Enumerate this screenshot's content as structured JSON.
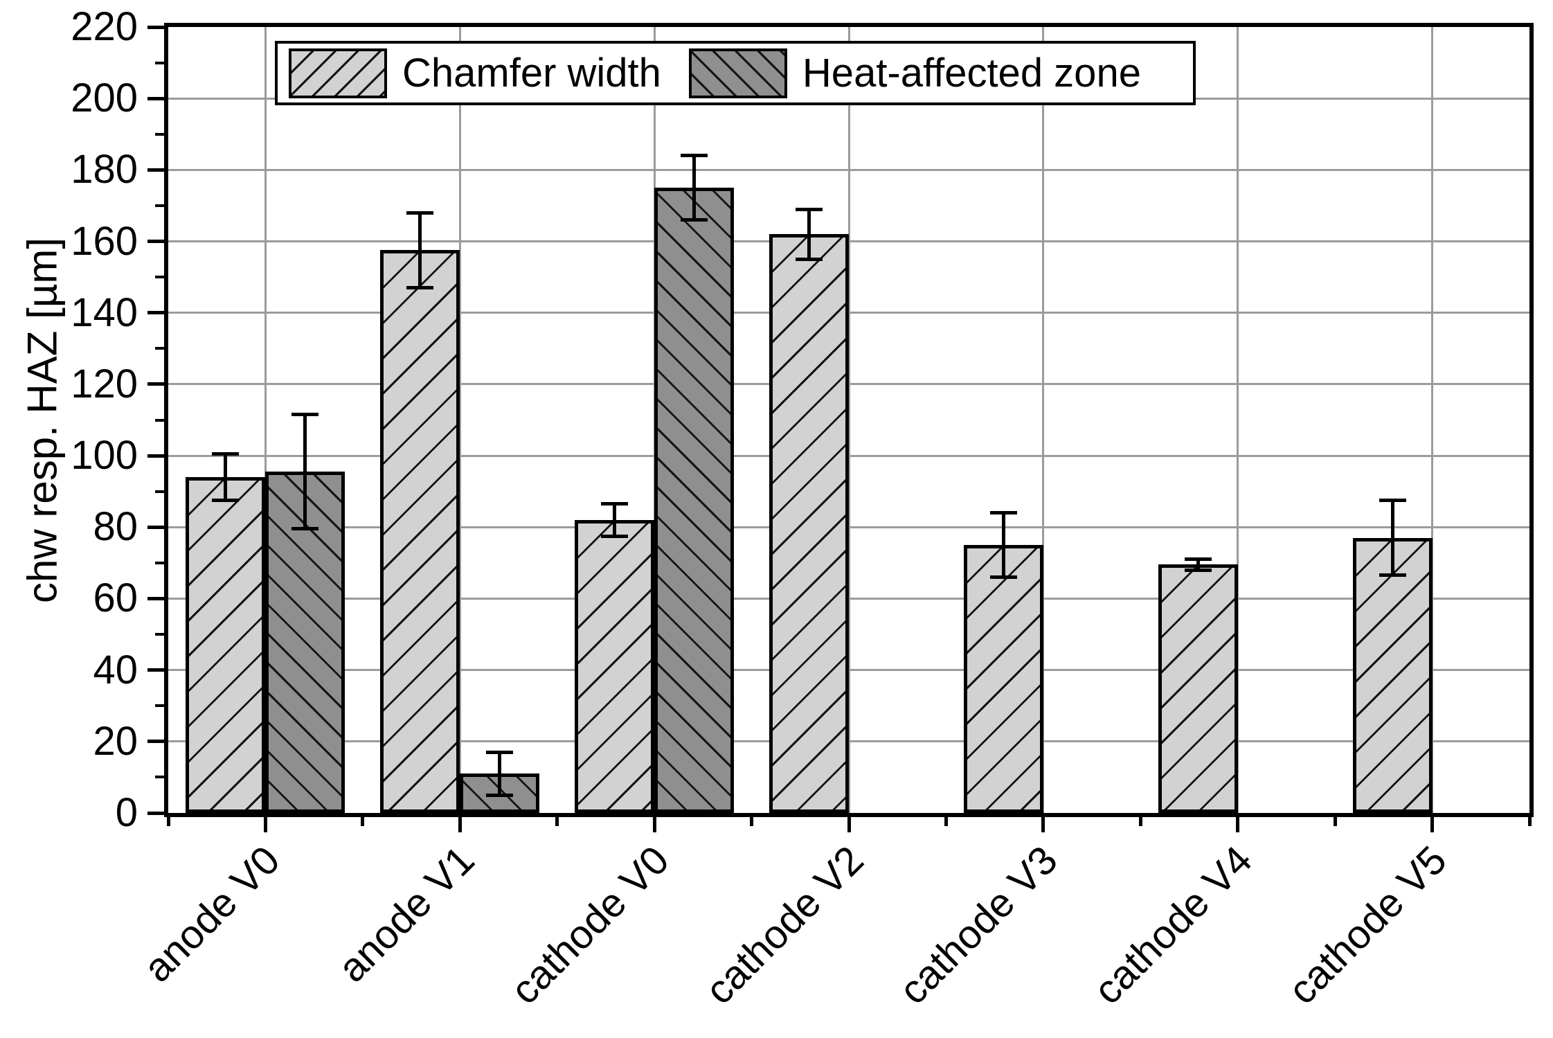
{
  "figure_background": "#ffffff",
  "chart_data": {
    "type": "bar",
    "title": "",
    "ylabel": "chw resp. HAZ [µm]",
    "xlabel": "",
    "ylim": [
      0,
      220
    ],
    "ytick_step": 20,
    "ytick_labels": [
      "0",
      "20",
      "40",
      "60",
      "80",
      "100",
      "120",
      "140",
      "160",
      "180",
      "200",
      "220"
    ],
    "grid": true,
    "legend_position": "top-left-inside",
    "categories": [
      "anode V0",
      "anode V1",
      "cathode V0",
      "cathode V2",
      "cathode V3",
      "cathode V4",
      "cathode V5"
    ],
    "series": [
      {
        "name": "Chamfer width",
        "values": [
          94,
          157.5,
          82,
          162,
          75,
          69.5,
          77
        ],
        "errors": [
          6.5,
          10.5,
          4.5,
          7,
          9,
          1.5,
          10.5
        ],
        "fill": "#d2d2d2",
        "hatch": "/"
      },
      {
        "name": "Heat-affected zone",
        "values": [
          95.5,
          11,
          175,
          null,
          null,
          null,
          null
        ],
        "errors": [
          16,
          6,
          9,
          null,
          null,
          null,
          null
        ],
        "fill": "#8f8f8f",
        "hatch": "\\"
      }
    ],
    "colors": {
      "hatch_line": "#141414",
      "bar_outline": "#000000",
      "gridline": "#9b9b9b",
      "axis": "#000000",
      "error_bar": "#000000",
      "text": "#000000"
    }
  }
}
